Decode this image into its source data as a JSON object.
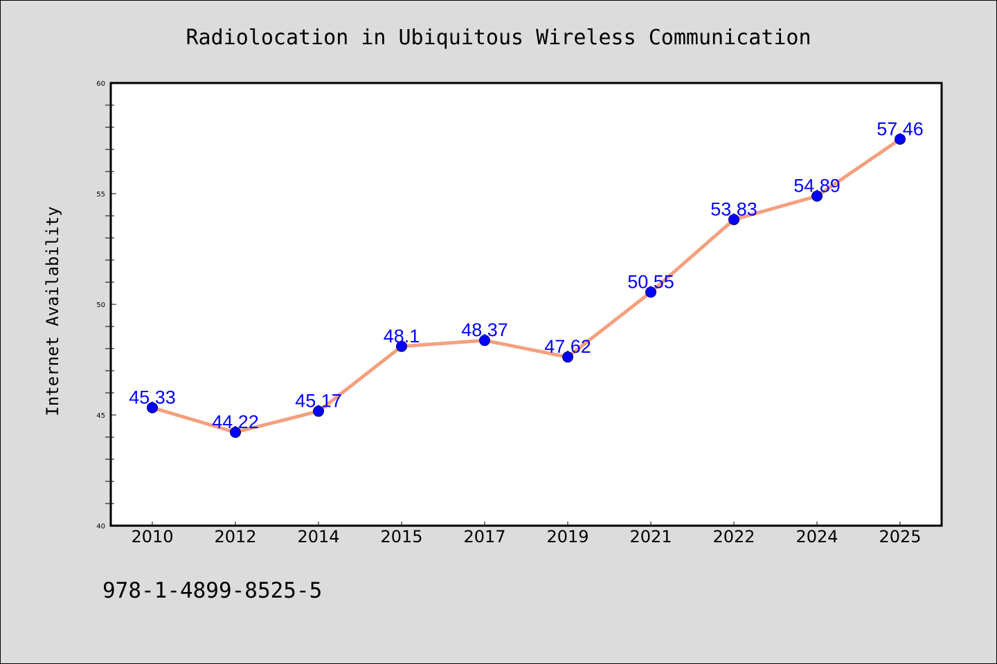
{
  "isbn": "978-1-4899-8525-5",
  "chart_data": {
    "type": "line",
    "title": "Radiolocation in Ubiquitous Wireless Communication",
    "xlabel": "",
    "ylabel": "Internet Availability",
    "categories": [
      "2010",
      "2012",
      "2014",
      "2015",
      "2017",
      "2019",
      "2021",
      "2022",
      "2024",
      "2025"
    ],
    "values": [
      45.33,
      44.22,
      45.17,
      48.1,
      48.37,
      47.62,
      50.55,
      53.83,
      54.89,
      57.46
    ],
    "data_labels": [
      "45.33",
      "44.22",
      "45.17",
      "48.1",
      "48.37",
      "47.62",
      "50.55",
      "53.83",
      "54.89",
      "57.46"
    ],
    "ylim": [
      40,
      60
    ],
    "yticks": [
      "40",
      "45",
      "50",
      "55",
      "60"
    ],
    "grid": false,
    "legend": "none",
    "colors": {
      "line": "#f4a07f",
      "marker": "#0000ff",
      "data_label": "#0000ff",
      "background": "#dcdcdc",
      "plot_area": "#ffffff"
    }
  }
}
